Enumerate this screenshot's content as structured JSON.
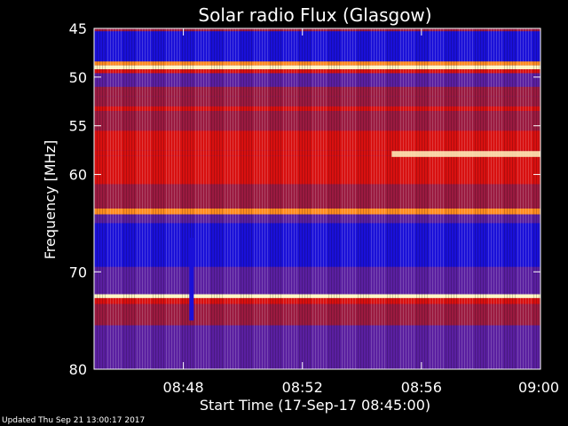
{
  "footer": {
    "updated": "Updated Thu Sep 21 13:00:17 2017"
  },
  "chart_data": {
    "type": "heatmap",
    "title": "Solar radio Flux (Glasgow)",
    "xlabel": "Start Time (17-Sep-17 08:45:00)",
    "ylabel": "Frequency [MHz]",
    "x_ticks": [
      {
        "value": 3,
        "label": "08:48"
      },
      {
        "value": 7,
        "label": "08:52"
      },
      {
        "value": 11,
        "label": "08:56"
      },
      {
        "value": 15,
        "label": "09:00"
      }
    ],
    "y_ticks": [
      {
        "value": 45,
        "label": "45"
      },
      {
        "value": 50,
        "label": "50"
      },
      {
        "value": 55,
        "label": "55"
      },
      {
        "value": 60,
        "label": "60"
      },
      {
        "value": 70,
        "label": "70"
      },
      {
        "value": 80,
        "label": "80"
      }
    ],
    "xlim": [
      0,
      15
    ],
    "ylim": [
      45,
      80
    ],
    "y_inverted": true,
    "colors": {
      "background": "#000000",
      "low": "#1a10d8",
      "mid_low": "#5a1fa0",
      "mid": "#9a1a40",
      "high": "#d81010",
      "very_high": "#ff8c20",
      "peak": "#fff4c0"
    },
    "bands": [
      {
        "from": 45.0,
        "to": 45.3,
        "level": "mid"
      },
      {
        "from": 45.3,
        "to": 46.5,
        "level": "low"
      },
      {
        "from": 46.5,
        "to": 48.4,
        "level": "low"
      },
      {
        "from": 48.4,
        "to": 48.8,
        "level": "very_high"
      },
      {
        "from": 48.8,
        "to": 49.2,
        "level": "peak"
      },
      {
        "from": 49.2,
        "to": 49.6,
        "level": "high"
      },
      {
        "from": 49.6,
        "to": 51.0,
        "level": "mid_low"
      },
      {
        "from": 51.0,
        "to": 52.0,
        "level": "mid"
      },
      {
        "from": 52.0,
        "to": 53.0,
        "level": "mid"
      },
      {
        "from": 53.0,
        "to": 53.5,
        "level": "high"
      },
      {
        "from": 53.5,
        "to": 55.5,
        "level": "mid"
      },
      {
        "from": 55.5,
        "to": 57.5,
        "level": "high"
      },
      {
        "from": 57.5,
        "to": 58.1,
        "level": "high"
      },
      {
        "from": 58.1,
        "to": 61.0,
        "level": "high"
      },
      {
        "from": 61.0,
        "to": 63.5,
        "level": "mid"
      },
      {
        "from": 63.5,
        "to": 64.1,
        "level": "very_high"
      },
      {
        "from": 64.1,
        "to": 65.0,
        "level": "mid_low"
      },
      {
        "from": 65.0,
        "to": 69.5,
        "level": "low"
      },
      {
        "from": 69.5,
        "to": 72.3,
        "level": "mid_low"
      },
      {
        "from": 72.3,
        "to": 72.7,
        "level": "peak"
      },
      {
        "from": 72.7,
        "to": 73.3,
        "level": "high"
      },
      {
        "from": 73.3,
        "to": 75.5,
        "level": "mid"
      },
      {
        "from": 75.5,
        "to": 80.0,
        "level": "mid_low"
      }
    ],
    "events": [
      {
        "x_from": 10.0,
        "x_to": 15.0,
        "y": 57.9,
        "height": 0.6,
        "level": "peak",
        "name": "burst"
      },
      {
        "x_from": 3.2,
        "x_to": 3.35,
        "y_from": 66.5,
        "y_to": 75.0,
        "level": "low",
        "name": "spike"
      }
    ]
  }
}
